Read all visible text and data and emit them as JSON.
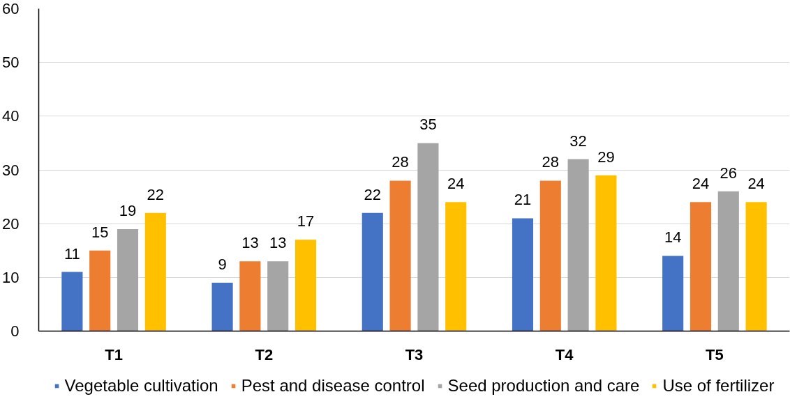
{
  "chart_data": {
    "type": "bar",
    "categories": [
      "T1",
      "T2",
      "T3",
      "T4",
      "T5"
    ],
    "series": [
      {
        "name": "Vegetable cultivation",
        "color": "#4472c4",
        "values": [
          11,
          9,
          22,
          21,
          14
        ]
      },
      {
        "name": "Pest and disease control",
        "color": "#ed7d31",
        "values": [
          15,
          13,
          28,
          28,
          24
        ]
      },
      {
        "name": "Seed production and care",
        "color": "#a5a5a5",
        "values": [
          19,
          13,
          35,
          32,
          26
        ]
      },
      {
        "name": "Use of fertilizer",
        "color": "#ffc000",
        "values": [
          22,
          17,
          24,
          29,
          24
        ]
      }
    ],
    "ylim": [
      0,
      60
    ],
    "yticks": [
      0,
      10,
      20,
      30,
      40,
      50,
      60
    ],
    "data_labels": true,
    "legend": "bottom",
    "grid": "y"
  }
}
